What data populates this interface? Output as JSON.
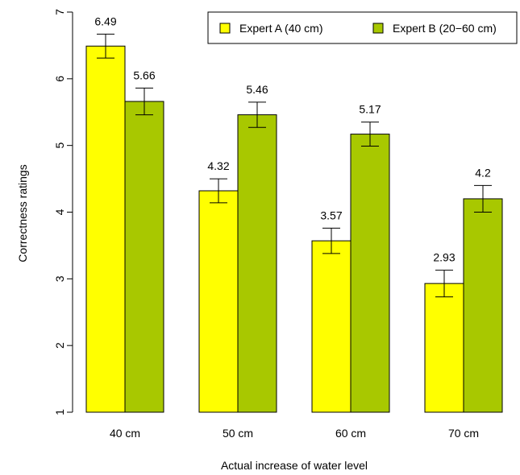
{
  "chart_data": {
    "type": "bar",
    "title": "",
    "xlabel": "Actual increase of water level",
    "ylabel": "Correctness ratings",
    "ylim": [
      1,
      7
    ],
    "yticks": [
      "1",
      "2",
      "3",
      "4",
      "5",
      "6",
      "7"
    ],
    "categories": [
      "40 cm",
      "50 cm",
      "60 cm",
      "70 cm"
    ],
    "series": [
      {
        "name": "Expert A (40 cm)",
        "color": "#ffff00",
        "values": [
          6.49,
          4.32,
          3.57,
          2.93
        ],
        "labels": [
          "6.49",
          "4.32",
          "3.57",
          "2.93"
        ],
        "error_low": [
          6.31,
          4.14,
          3.38,
          2.73
        ],
        "error_high": [
          6.67,
          4.5,
          3.76,
          3.13
        ]
      },
      {
        "name": "Expert B (20−60 cm)",
        "color": "#a8c800",
        "values": [
          5.66,
          5.46,
          5.17,
          4.2
        ],
        "labels": [
          "5.66",
          "5.46",
          "5.17",
          "4.2"
        ],
        "error_low": [
          5.46,
          5.27,
          4.99,
          4.0
        ],
        "error_high": [
          5.86,
          5.65,
          5.35,
          4.4
        ]
      }
    ],
    "legend": "top-right",
    "grid": false
  }
}
